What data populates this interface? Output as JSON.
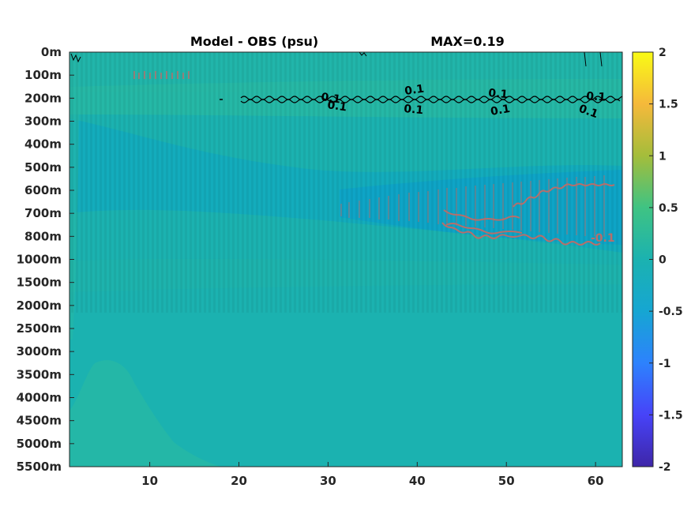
{
  "title": "Model - OBS (psu)",
  "max_label": "MAX=0.19",
  "colors": {
    "background": "#1bb2b0",
    "band_positive": "#2ab9a2",
    "band_negative": "#12a9c0",
    "contour_positive": "#000000",
    "contour_negative": "#b86e6a",
    "colormap": [
      "#3e26a8",
      "#4743f8",
      "#2d82fd",
      "#16a6d2",
      "#1bb2b0",
      "#3fc383",
      "#a4bd3b",
      "#f5b93b",
      "#f9fb15"
    ]
  },
  "chart_data": {
    "type": "heatmap",
    "title": "Model - OBS (psu)",
    "annotation": "MAX=0.19",
    "x_ticks": [
      10,
      20,
      30,
      40,
      50,
      60
    ],
    "xlim": [
      1,
      63
    ],
    "y_ticks": [
      "0m",
      "100m",
      "200m",
      "300m",
      "400m",
      "500m",
      "600m",
      "700m",
      "800m",
      "1000m",
      "1500m",
      "2000m",
      "2500m",
      "3000m",
      "3500m",
      "4000m",
      "4500m",
      "5000m",
      "5500m"
    ],
    "colorbar": {
      "ticks": [
        "2",
        "1.5",
        "1",
        "0.5",
        "0",
        "-0.5",
        "-1",
        "-1.5",
        "-2"
      ],
      "range": [
        -2,
        2
      ]
    },
    "contours": [
      {
        "level": 0.1,
        "color": "black",
        "labels": [
          "0.1",
          "0.1",
          "0.1",
          "0.1",
          "0.1",
          "0.1",
          "0.1",
          "0.1"
        ]
      },
      {
        "level": -0.1,
        "color": "rosybrown",
        "labels": [
          "-0.1"
        ]
      }
    ]
  }
}
